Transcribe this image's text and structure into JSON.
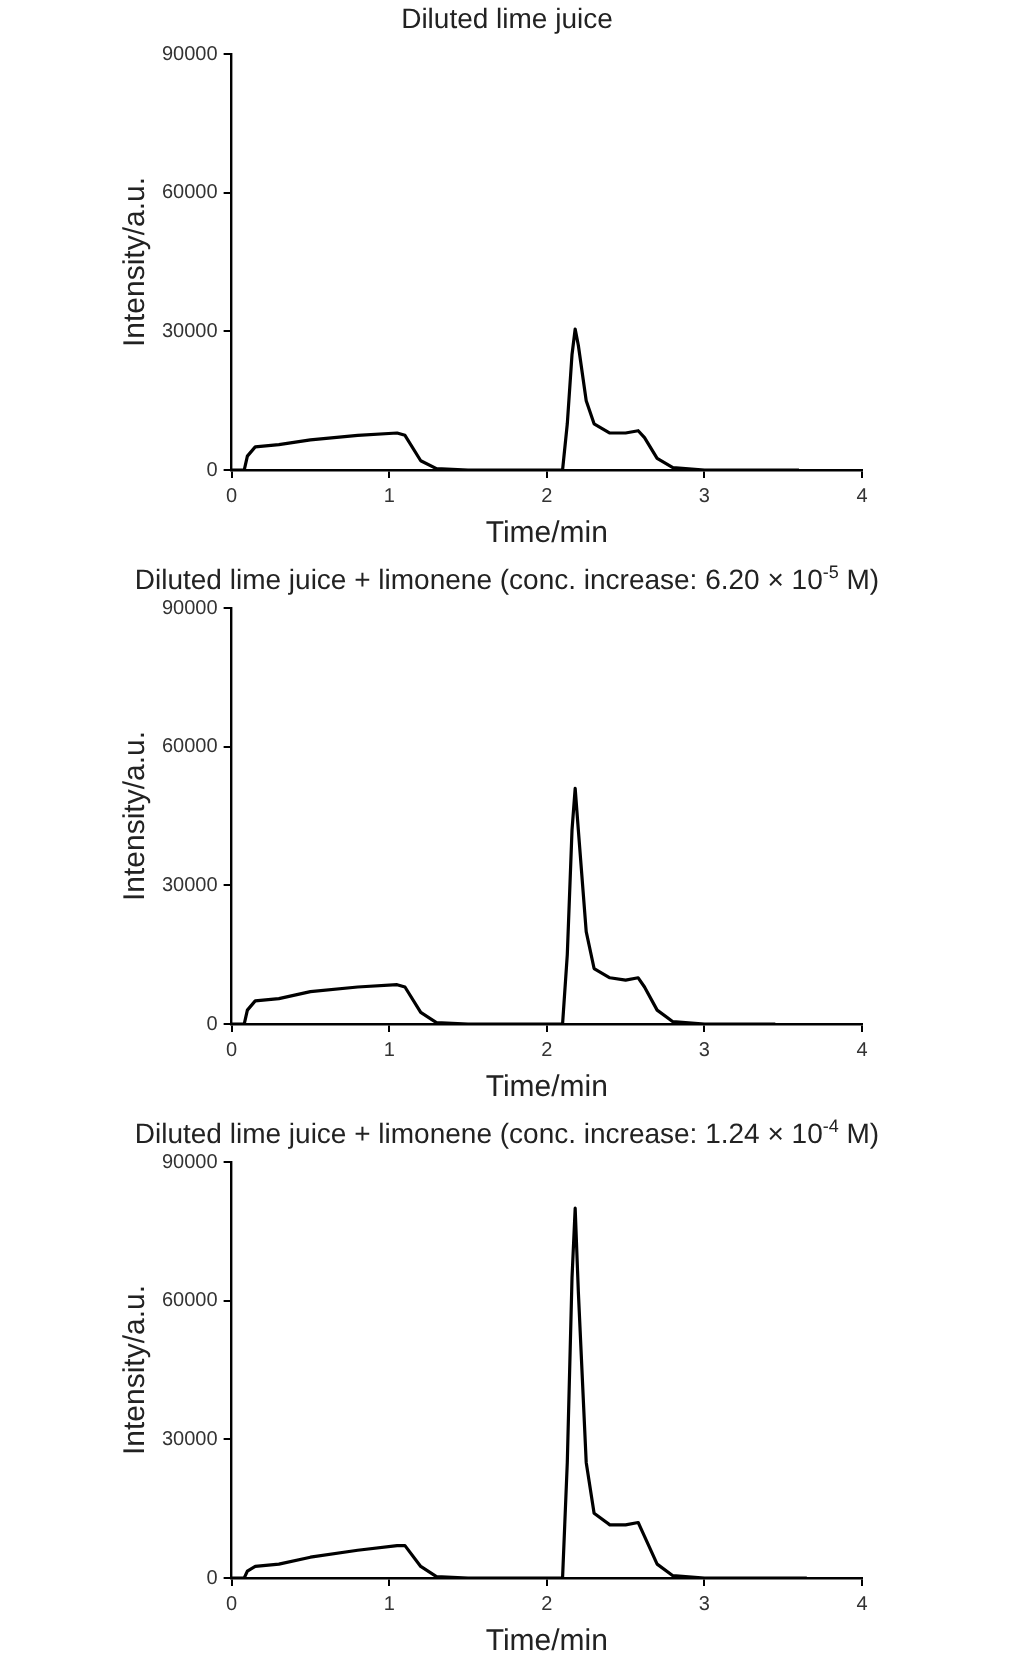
{
  "chart_data": [
    {
      "type": "line",
      "title": "Diluted lime juice",
      "xlabel": "Time/min",
      "ylabel": "Intensity/a.u.",
      "xlim": [
        0,
        4
      ],
      "xticks": [
        0,
        1,
        2,
        3,
        4
      ],
      "ylim": [
        0,
        90000
      ],
      "yticks": [
        0,
        30000,
        60000,
        90000
      ],
      "grid": false,
      "legend": false,
      "series": [
        {
          "color": "#000000",
          "x": [
            0,
            0.08,
            0.1,
            0.15,
            0.3,
            0.5,
            0.8,
            1.05,
            1.1,
            1.2,
            1.3,
            1.5,
            2.0,
            2.1,
            2.13,
            2.16,
            2.18,
            2.2,
            2.25,
            2.3,
            2.4,
            2.5,
            2.58,
            2.62,
            2.7,
            2.8,
            3.0,
            3.6
          ],
          "values": [
            0,
            0,
            3000,
            5000,
            5500,
            6500,
            7500,
            8000,
            7500,
            2000,
            300,
            0,
            0,
            0,
            10000,
            25000,
            30500,
            27000,
            15000,
            10000,
            8000,
            8000,
            8500,
            7000,
            2500,
            500,
            0,
            0
          ]
        }
      ]
    },
    {
      "type": "line",
      "title": "Diluted lime juice + limonene (conc. increase: 6.20 × 10$^{-5}$ M)",
      "xlabel": "Time/min",
      "ylabel": "Intensity/a.u.",
      "xlim": [
        0,
        4
      ],
      "xticks": [
        0,
        1,
        2,
        3,
        4
      ],
      "ylim": [
        0,
        90000
      ],
      "yticks": [
        0,
        30000,
        60000,
        90000
      ],
      "grid": false,
      "legend": false,
      "series": [
        {
          "color": "#000000",
          "x": [
            0,
            0.08,
            0.1,
            0.15,
            0.3,
            0.5,
            0.8,
            1.05,
            1.1,
            1.2,
            1.3,
            1.5,
            2.0,
            2.1,
            2.13,
            2.16,
            2.18,
            2.2,
            2.25,
            2.3,
            2.4,
            2.5,
            2.58,
            2.62,
            2.7,
            2.8,
            3.0,
            3.45
          ],
          "values": [
            0,
            0,
            3000,
            5000,
            5500,
            7000,
            8000,
            8500,
            8000,
            2500,
            300,
            0,
            0,
            0,
            15000,
            42000,
            51000,
            42000,
            20000,
            12000,
            10000,
            9500,
            10000,
            8000,
            3000,
            500,
            0,
            0
          ]
        }
      ]
    },
    {
      "type": "line",
      "title": "Diluted lime juice + limonene (conc. increase: 1.24 × 10$^{-4}$ M)",
      "xlabel": "Time/min",
      "ylabel": "Intensity/a.u.",
      "xlim": [
        0,
        4
      ],
      "xticks": [
        0,
        1,
        2,
        3,
        4
      ],
      "ylim": [
        0,
        90000
      ],
      "yticks": [
        0,
        30000,
        60000,
        90000
      ],
      "grid": false,
      "legend": false,
      "series": [
        {
          "color": "#000000",
          "x": [
            0,
            0.08,
            0.1,
            0.15,
            0.3,
            0.5,
            0.8,
            1.05,
            1.1,
            1.2,
            1.3,
            1.5,
            2.0,
            2.1,
            2.13,
            2.16,
            2.18,
            2.2,
            2.25,
            2.3,
            2.4,
            2.5,
            2.58,
            2.62,
            2.7,
            2.8,
            3.0,
            3.65
          ],
          "values": [
            0,
            0,
            1500,
            2500,
            3000,
            4500,
            6000,
            7000,
            7000,
            2500,
            300,
            0,
            0,
            0,
            25000,
            65000,
            80000,
            62000,
            25000,
            14000,
            11500,
            11500,
            12000,
            9000,
            3000,
            500,
            0,
            0
          ]
        }
      ]
    }
  ]
}
